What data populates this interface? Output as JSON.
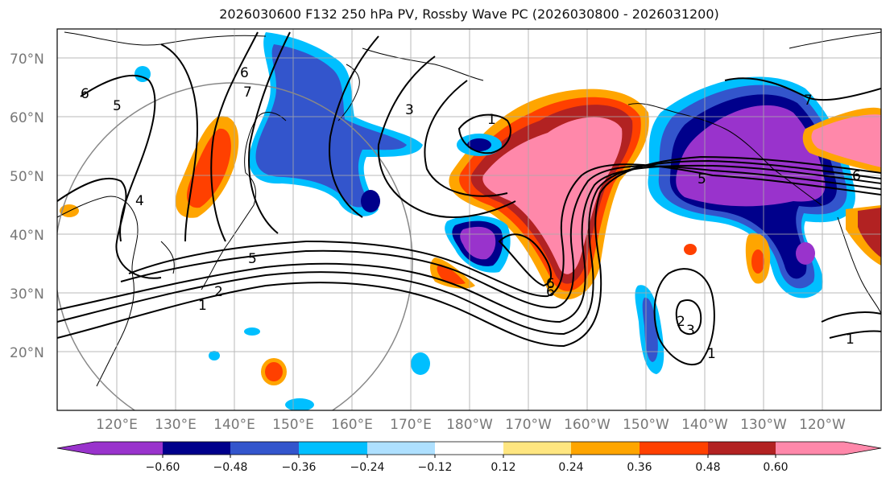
{
  "title": "2026030600 F132 250 hPa PV, Rossby Wave PC (2026030800 - 2026031200)",
  "lat_labels": [
    "70°N",
    "60°N",
    "50°N",
    "40°N",
    "30°N",
    "20°N"
  ],
  "lon_labels": [
    "120°E",
    "130°E",
    "140°E",
    "150°E",
    "160°E",
    "170°E",
    "180°W",
    "170°W",
    "160°W",
    "150°W",
    "140°W",
    "130°W",
    "120°W"
  ],
  "colorbar": {
    "colors": [
      "#9933cc",
      "#00008b",
      "#3355cc",
      "#00bfff",
      "#aee0ff",
      "#ffffff",
      "#ffe680",
      "#ffa500",
      "#ff4000",
      "#b22222",
      "#ff88aa"
    ],
    "tick_labels": [
      "−0.60",
      "−0.48",
      "−0.36",
      "−0.24",
      "−0.12",
      "0.12",
      "0.24",
      "0.36",
      "0.48",
      "0.60"
    ]
  },
  "contour_labels": [
    "6",
    "5",
    "4",
    "7",
    "6",
    "3",
    "1",
    "1",
    "2",
    "5",
    "6",
    "6",
    "5",
    "7",
    "6",
    "3",
    "2",
    "1",
    "1"
  ],
  "colors": {
    "neg_strong": "#9933cc",
    "neg_dark": "#00008b",
    "neg_mid": "#3355cc",
    "neg_light": "#00bfff",
    "pos_light": "#ffa500",
    "pos_mid": "#ff4000",
    "pos_dark": "#b22222",
    "pos_strong": "#ff88aa"
  }
}
